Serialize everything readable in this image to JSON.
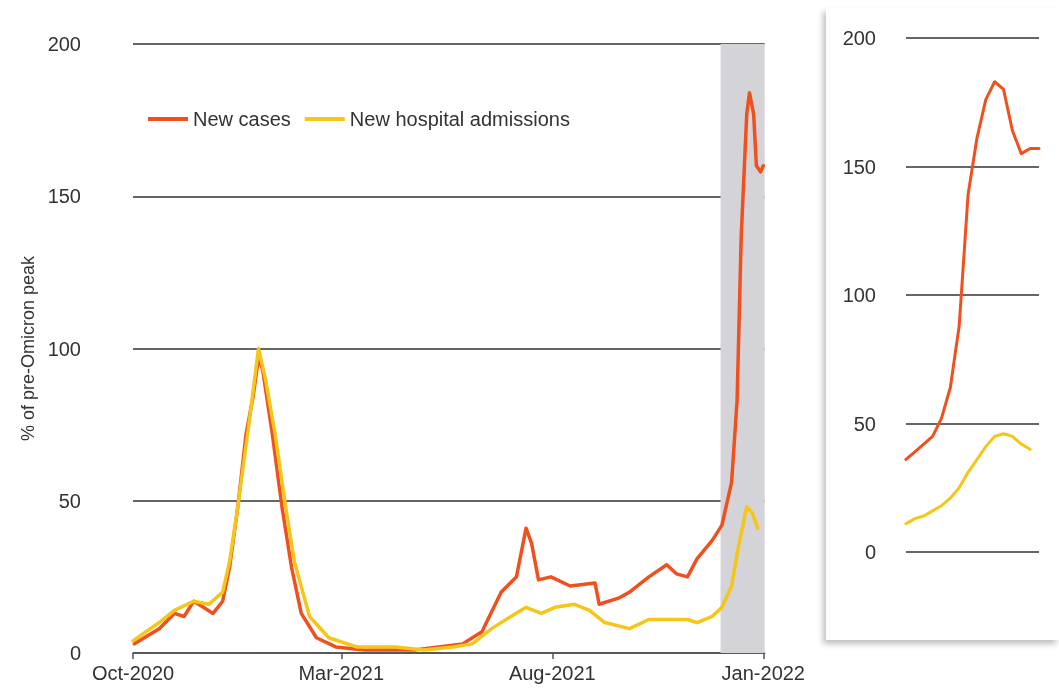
{
  "chart_data": [
    {
      "type": "line",
      "ylabel": "% of pre-Omicron peak",
      "xlim": [
        "2020-10-01",
        "2022-01-02"
      ],
      "xticks": [
        {
          "value": "2020-10-01",
          "label": "Oct-2020"
        },
        {
          "value": "2021-03-01",
          "label": "Mar-2021"
        },
        {
          "value": "2021-08-01",
          "label": "Aug-2021"
        },
        {
          "value": "2022-01-01",
          "label": "Jan-2022"
        }
      ],
      "ylim": [
        0,
        200
      ],
      "yticks": [
        0,
        50,
        100,
        150,
        200
      ],
      "grid": "y",
      "legend": "top left",
      "marker": "none",
      "line_style": "solid",
      "bands": [
        {
          "axis": "x",
          "from": "2021-12-01",
          "to": "2022-01-02",
          "color": "#d4d4d8"
        }
      ],
      "series": [
        {
          "name": "New cases",
          "color": "#f0501e",
          "x": [
            "2020-10-02",
            "2020-10-20",
            "2020-10-31",
            "2020-11-07",
            "2020-11-14",
            "2020-11-21",
            "2020-11-28",
            "2020-12-05",
            "2020-12-10",
            "2020-12-16",
            "2020-12-22",
            "2020-12-27",
            "2020-12-31",
            "2021-01-03",
            "2021-01-10",
            "2021-01-17",
            "2021-01-24",
            "2021-01-31",
            "2021-02-11",
            "2021-02-25",
            "2021-03-18",
            "2021-04-23",
            "2021-05-28",
            "2021-06-11",
            "2021-06-25",
            "2021-07-06",
            "2021-07-13",
            "2021-07-17",
            "2021-07-22",
            "2021-07-31",
            "2021-08-14",
            "2021-09-01",
            "2021-09-04",
            "2021-09-18",
            "2021-09-26",
            "2021-10-10",
            "2021-10-23",
            "2021-10-30",
            "2021-11-07",
            "2021-11-14",
            "2021-11-25",
            "2021-12-02",
            "2021-12-09",
            "2021-12-13",
            "2021-12-16",
            "2021-12-20",
            "2021-12-22",
            "2021-12-25",
            "2021-12-27",
            "2021-12-30",
            "2022-01-01"
          ],
          "values": [
            3,
            8,
            13,
            12,
            17,
            15,
            13,
            17,
            28,
            48,
            72,
            84,
            97,
            93,
            72,
            48,
            28,
            13,
            5,
            2,
            1,
            1,
            3,
            7,
            20,
            25,
            41,
            36,
            24,
            25,
            22,
            23,
            16,
            18,
            20,
            25,
            29,
            26,
            25,
            31,
            37,
            42,
            56,
            83,
            137,
            177,
            184,
            177,
            160,
            158,
            160
          ]
        },
        {
          "name": "New hospital admissions",
          "color": "#f5c518",
          "x": [
            "2020-10-01",
            "2020-10-20",
            "2020-10-31",
            "2020-11-14",
            "2020-11-25",
            "2020-12-05",
            "2020-12-10",
            "2020-12-16",
            "2020-12-24",
            "2020-12-31",
            "2021-01-05",
            "2021-01-12",
            "2021-01-19",
            "2021-01-26",
            "2021-02-06",
            "2021-02-20",
            "2021-03-12",
            "2021-04-09",
            "2021-04-30",
            "2021-05-21",
            "2021-06-04",
            "2021-06-18",
            "2021-07-02",
            "2021-07-13",
            "2021-07-24",
            "2021-08-03",
            "2021-08-17",
            "2021-08-28",
            "2021-09-08",
            "2021-09-26",
            "2021-10-10",
            "2021-10-24",
            "2021-11-07",
            "2021-11-14",
            "2021-11-25",
            "2021-12-02",
            "2021-12-09",
            "2021-12-14",
            "2021-12-20",
            "2021-12-24",
            "2021-12-28"
          ],
          "values": [
            4,
            10,
            14,
            17,
            16,
            20,
            30,
            48,
            75,
            100,
            90,
            72,
            50,
            30,
            12,
            5,
            2,
            2,
            1,
            2,
            3,
            8,
            12,
            15,
            13,
            15,
            16,
            14,
            10,
            8,
            11,
            11,
            11,
            10,
            12,
            15,
            22,
            35,
            48,
            46,
            41
          ]
        }
      ]
    },
    {
      "type": "line",
      "categories": [
        null,
        null,
        null,
        null,
        null,
        null,
        null,
        null,
        null,
        null,
        null,
        null,
        null,
        null,
        null,
        null
      ],
      "ylim": [
        0,
        200
      ],
      "yticks": [
        0,
        50,
        100,
        150,
        200
      ],
      "grid": "y",
      "tick_labels": "y",
      "marker": "none",
      "line_style": "solid",
      "series": [
        {
          "color": "#f0501e",
          "values": [
            36,
            39,
            42,
            45,
            52,
            64,
            88,
            139,
            161,
            176,
            183,
            180,
            164,
            155,
            157,
            157
          ]
        },
        {
          "color": "#f5c518",
          "values": [
            11,
            13,
            14,
            16,
            18,
            21,
            25,
            31,
            36,
            41,
            45,
            46,
            45,
            42,
            40,
            null
          ]
        }
      ]
    }
  ]
}
